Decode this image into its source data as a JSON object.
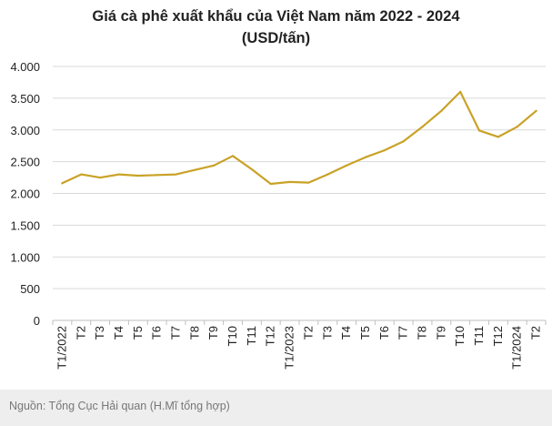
{
  "chart_data": {
    "type": "line",
    "title": "Giá cà phê xuất khẩu của Việt Nam năm 2022 - 2024",
    "subtitle": "(USD/tấn)",
    "xlabel": "",
    "ylabel": "",
    "ylim": [
      0,
      4000
    ],
    "yticks": [
      0,
      500,
      1000,
      1500,
      2000,
      2500,
      3000,
      3500,
      4000
    ],
    "ytick_labels": [
      "0",
      "500",
      "1.000",
      "1.500",
      "2.000",
      "2.500",
      "3.000",
      "3.500",
      "4.000"
    ],
    "grid": true,
    "legend": "none",
    "categories": [
      "T1/2022",
      "T2",
      "T3",
      "T4",
      "T5",
      "T6",
      "T7",
      "T8",
      "T9",
      "T10",
      "T11",
      "T12",
      "T1/2023",
      "T2",
      "T3",
      "T4",
      "T5",
      "T6",
      "T7",
      "T8",
      "T9",
      "T10",
      "T11",
      "T12",
      "T1/2024",
      "T2"
    ],
    "series": [
      {
        "name": "Giá cà phê xuất khẩu",
        "color": "#c9a227",
        "values": [
          2160,
          2300,
          2250,
          2300,
          2280,
          2290,
          2300,
          2370,
          2440,
          2590,
          2380,
          2150,
          2180,
          2170,
          2300,
          2440,
          2570,
          2680,
          2820,
          3050,
          3300,
          3600,
          2990,
          2890,
          3050,
          3300
        ]
      }
    ]
  },
  "footer": {
    "source": "Nguồn: Tổng Cục Hải quan (H.Mĩ tổng hợp)"
  }
}
